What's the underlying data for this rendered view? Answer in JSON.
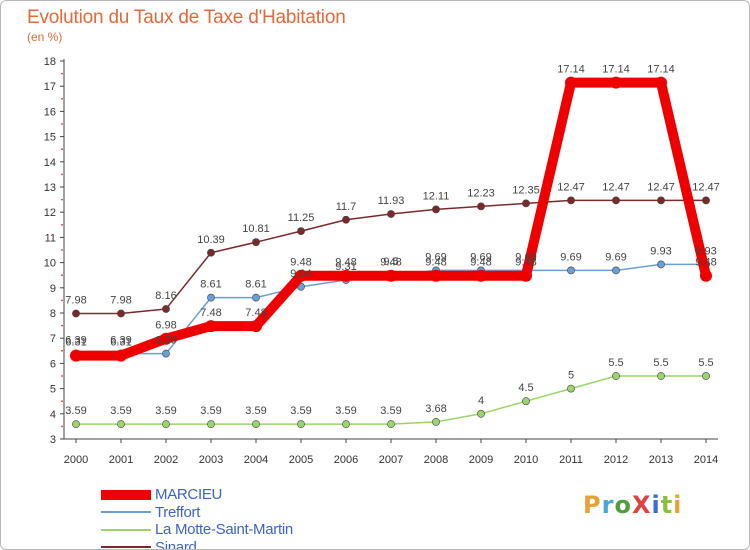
{
  "title": "Evolution du Taux de Taxe d'Habitation",
  "subtitle": "(en %)",
  "logo": {
    "text": "ProXiti",
    "colors": [
      "#e8a135",
      "#4aa6d8",
      "#4f9f3d",
      "#e04040",
      "#3d6fd1",
      "#8cbf3f",
      "#e8a135"
    ]
  },
  "chart_data": {
    "type": "line",
    "x": [
      2000,
      2001,
      2002,
      2003,
      2004,
      2005,
      2006,
      2007,
      2008,
      2009,
      2010,
      2011,
      2012,
      2013,
      2014
    ],
    "ylim": [
      3,
      18
    ],
    "yticks": [
      3,
      4,
      5,
      6,
      7,
      8,
      9,
      10,
      11,
      12,
      13,
      14,
      15,
      16,
      17,
      18
    ],
    "grid": false,
    "legend_position": "bottom-left",
    "series": [
      {
        "name": "MARCIEU",
        "color": "#ee0000",
        "values": [
          6.31,
          6.31,
          6.98,
          7.48,
          7.48,
          9.48,
          9.48,
          9.48,
          9.48,
          9.48,
          9.48,
          17.14,
          17.14,
          17.14,
          9.48
        ],
        "labels": [
          "6.31",
          "6.31",
          "6.98",
          "7.48",
          "7.48",
          "9.48",
          "9.48",
          "9.48",
          "9.48",
          "9.48",
          "9.48",
          "17.14",
          "17.14",
          "17.14",
          "9.48"
        ]
      },
      {
        "name": "Treffort",
        "color": "#6a9fd6",
        "values": [
          6.39,
          6.39,
          6.39,
          8.61,
          8.61,
          9.04,
          9.31,
          9.5,
          9.69,
          9.69,
          9.69,
          9.69,
          9.69,
          9.93,
          9.93
        ],
        "labels": [
          "6.39",
          "6.39",
          "6.39",
          "8.61",
          "8.61",
          "9.04",
          "9.31",
          "9.5",
          "9.69",
          "9.69",
          "9.69",
          "9.69",
          "9.69",
          "9.93",
          "9.93"
        ]
      },
      {
        "name": "La Motte-Saint-Martin",
        "color": "#9bd46a",
        "values": [
          3.59,
          3.59,
          3.59,
          3.59,
          3.59,
          3.59,
          3.59,
          3.59,
          3.68,
          4,
          4.5,
          5,
          5.5,
          5.5,
          5.5
        ],
        "labels": [
          "3.59",
          "3.59",
          "3.59",
          "3.59",
          "3.59",
          "3.59",
          "3.59",
          "3.59",
          "3.68",
          "4",
          "4.5",
          "5",
          "5.5",
          "5.5",
          "5.5"
        ]
      },
      {
        "name": "Sinard",
        "color": "#7a2a2a",
        "values": [
          7.98,
          7.98,
          8.16,
          10.39,
          10.81,
          11.25,
          11.7,
          11.93,
          12.11,
          12.23,
          12.35,
          12.47,
          12.47,
          12.47,
          12.47
        ],
        "labels": [
          "7.98",
          "7.98",
          "8.16",
          "10.39",
          "10.81",
          "11.25",
          "11.7",
          "11.93",
          "12.11",
          "12.23",
          "12.35",
          "12.47",
          "12.47",
          "12.47",
          "12.47"
        ]
      }
    ]
  }
}
